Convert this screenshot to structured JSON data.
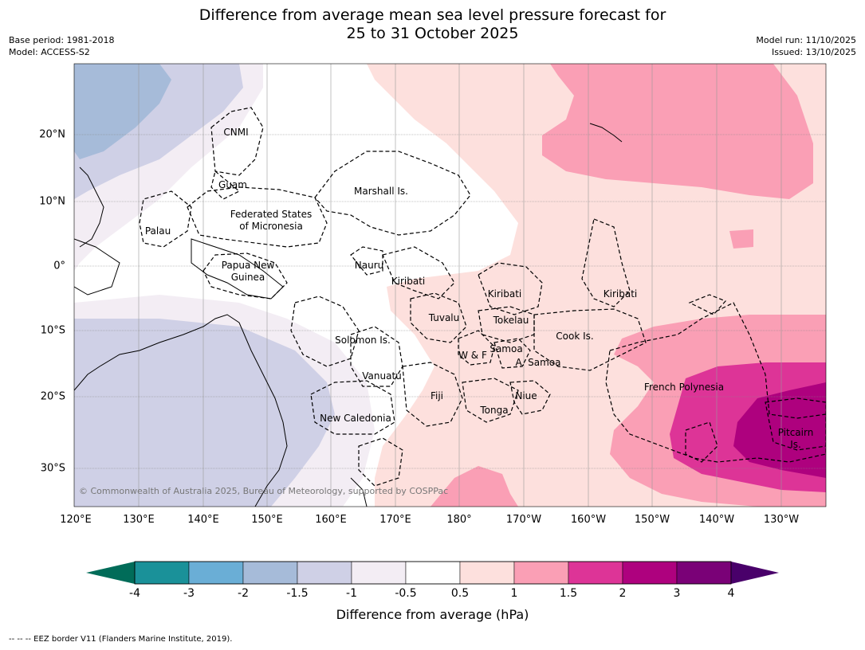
{
  "title": {
    "line1": "Difference from average mean sea level pressure forecast for",
    "line2": "25 to 31 October 2025"
  },
  "meta": {
    "base_period": "Base period: 1981-2018",
    "model": "Model: ACCESS-S2",
    "model_run": "Model run: 11/10/2025",
    "issued": "Issued: 13/10/2025"
  },
  "axes": {
    "lon_labels": [
      "120°E",
      "130°E",
      "140°E",
      "150°E",
      "160°E",
      "170°E",
      "180°",
      "170°W",
      "160°W",
      "150°W",
      "140°W",
      "130°W"
    ],
    "lat_labels": [
      "20°N",
      "10°N",
      "0°",
      "10°S",
      "20°S",
      "30°S"
    ]
  },
  "regions": [
    {
      "label": "CNMI"
    },
    {
      "label": "Guam"
    },
    {
      "label": "Marshall Is."
    },
    {
      "label": "Federated States"
    },
    {
      "label": "of Micronesia"
    },
    {
      "label": "Palau"
    },
    {
      "label": "Papua New"
    },
    {
      "label": "Guinea"
    },
    {
      "label": "Nauru"
    },
    {
      "label": "Kiribati"
    },
    {
      "label": "Kiribati"
    },
    {
      "label": "Kiribati"
    },
    {
      "label": "Tuvalu"
    },
    {
      "label": "Tokelau"
    },
    {
      "label": "Cook Is."
    },
    {
      "label": "Solomon Is."
    },
    {
      "label": "Samoa"
    },
    {
      "label": "W & F"
    },
    {
      "label": "A. Samoa"
    },
    {
      "label": "Vanuatu"
    },
    {
      "label": "Fiji"
    },
    {
      "label": "Niue"
    },
    {
      "label": "Tonga"
    },
    {
      "label": "French Polynesia"
    },
    {
      "label": "New Caledonia"
    },
    {
      "label": "Pitcairn"
    },
    {
      "label": "Is."
    }
  ],
  "copyright": "© Commonwealth of Australia 2025, Bureau of Meteorology, supported by COSPPac",
  "colorbar": {
    "title": "Difference from average (hPa)",
    "ticks": [
      "-4",
      "-3",
      "-2",
      "-1.5",
      "-1",
      "-0.5",
      "0.5",
      "1",
      "1.5",
      "2",
      "3",
      "4"
    ],
    "colors": [
      "#1a9199",
      "#6aaed6",
      "#a6bbd9",
      "#cfd0e6",
      "#f3edf4",
      "#ffffff",
      "#fde0dd",
      "#fa9fb5",
      "#dd3497",
      "#ae017e",
      "#7a0177"
    ],
    "under_color": "#016c59",
    "over_color": "#49006a"
  },
  "footer": "--  --  -- EEZ border V11 (Flanders Marine Institute, 2019)."
}
